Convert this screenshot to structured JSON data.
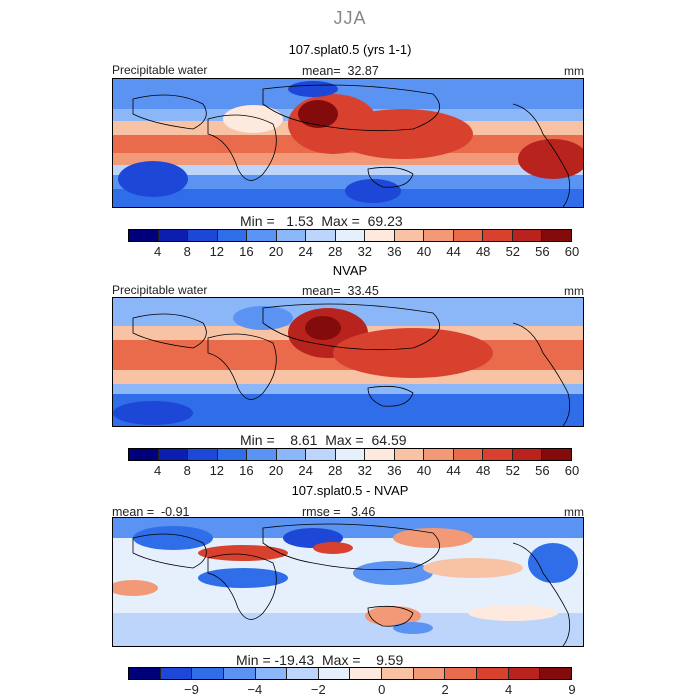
{
  "season": "JJA",
  "panels": [
    {
      "title": "107.splat0.5 (yrs 1-1)",
      "variable": "Precipitable water",
      "mean_label": "mean=",
      "mean_value": "32.87",
      "units": "mm",
      "min_label": "Min =",
      "min_value": "1.53",
      "max_label": "Max =",
      "max_value": "69.23",
      "colorbar_ticks": [
        "4",
        "8",
        "12",
        "16",
        "20",
        "24",
        "28",
        "32",
        "36",
        "40",
        "44",
        "48",
        "52",
        "56",
        "60"
      ]
    },
    {
      "title": "NVAP",
      "variable": "Precipitable water",
      "mean_label": "mean=",
      "mean_value": "33.45",
      "units": "mm",
      "min_label": "Min =",
      "min_value": "8.61",
      "max_label": "Max =",
      "max_value": "64.59",
      "colorbar_ticks": [
        "4",
        "8",
        "12",
        "16",
        "20",
        "24",
        "28",
        "32",
        "36",
        "40",
        "44",
        "48",
        "52",
        "56",
        "60"
      ]
    },
    {
      "title": "107.splat0.5 - NVAP",
      "mean_label": "mean =",
      "mean_value": "-0.91",
      "rmse_label": "rmse =",
      "rmse_value": "3.46",
      "units": "mm",
      "min_label": "Min =",
      "min_value": "-19.43",
      "max_label": "Max =",
      "max_value": "9.59",
      "colorbar_ticks": [
        "−9",
        "−4",
        "−2",
        "0",
        "2",
        "4",
        "9"
      ]
    }
  ],
  "colors": {
    "scale": [
      "#00007a",
      "#0a1fb0",
      "#1d47d6",
      "#2f6ee8",
      "#5a93f2",
      "#8bb6f7",
      "#bdd5fa",
      "#e6effc",
      "#fde9dd",
      "#f8c2a5",
      "#f29a78",
      "#e96b4c",
      "#d9412f",
      "#b8231e",
      "#840b0b"
    ],
    "diff_scale": [
      "#00007a",
      "#1d47d6",
      "#2f6ee8",
      "#5a93f2",
      "#8bb6f7",
      "#bdd5fa",
      "#e6effc",
      "#fde9dd",
      "#f8c2a5",
      "#f29a78",
      "#e96b4c",
      "#d9412f",
      "#b8231e",
      "#840b0b"
    ]
  }
}
